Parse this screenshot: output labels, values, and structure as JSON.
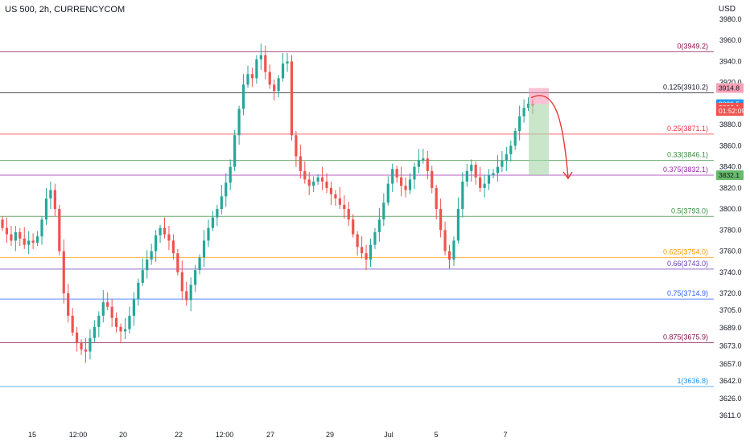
{
  "header": {
    "symbol_title": "US 500, 2h, CURRENCYCOM",
    "currency": "USD"
  },
  "chart_data": {
    "type": "candlestick",
    "title": "US 500, 2h, CURRENCYCOM",
    "y_axis_unit": "USD",
    "y_ticks": [
      "3980.0",
      "3960.0",
      "3940.0",
      "3920.0",
      "3880.0",
      "3860.0",
      "3840.0",
      "3820.0",
      "3800.0",
      "3780.0",
      "3760.0",
      "3740.0",
      "3720.0",
      "3705.0",
      "3689.0",
      "3673.0",
      "3657.0",
      "3642.0",
      "3626.0",
      "3611.0"
    ],
    "x_ticks": [
      "15",
      "12:00",
      "20",
      "22",
      "12:00",
      "27",
      "29",
      "Jul",
      "5",
      "7"
    ],
    "fib_levels": [
      {
        "label": "0(3949.2)",
        "value": 3949.2,
        "color": "#880e4f"
      },
      {
        "label": "0.125(3910.2)",
        "value": 3910.2,
        "color": "#131722"
      },
      {
        "label": "0.25(3871.1)",
        "value": 3871.1,
        "color": "#f23645"
      },
      {
        "label": "0.33(3846.1)",
        "value": 3846.1,
        "color": "#388e3c"
      },
      {
        "label": "0.375(3832.1)",
        "value": 3832.1,
        "color": "#9c27b0"
      },
      {
        "label": "0.5(3793.0)",
        "value": 3793.0,
        "color": "#388e3c"
      },
      {
        "label": "0.625(3754.0)",
        "value": 3754.0,
        "color": "#ff9800"
      },
      {
        "label": "0.66(3743.0)",
        "value": 3743.0,
        "color": "#673ab7"
      },
      {
        "label": "0.75(3714.9)",
        "value": 3714.9,
        "color": "#2962ff"
      },
      {
        "label": "0.875(3675.9)",
        "value": 3675.9,
        "color": "#880e4f"
      },
      {
        "label": "1(3636.8)",
        "value": 3636.8,
        "color": "#2196f3"
      }
    ],
    "price_tags": [
      {
        "text": "3914.8",
        "value": 3914.8,
        "bg": "#f7a1b6",
        "fg": "#131722"
      },
      {
        "text": "3899.5",
        "value": 3899.5,
        "bg": "#2196f3",
        "fg": "#ffffff"
      },
      {
        "text": "3896.1",
        "value": 3896.1,
        "bg": "#ef5350",
        "fg": "#ffffff"
      },
      {
        "text": "01:52:09",
        "value": 3893.0,
        "bg": "#ef5350",
        "fg": "#ffffff"
      },
      {
        "text": "3832.1",
        "value": 3832.1,
        "bg": "#66bb6a",
        "fg": "#131722"
      }
    ],
    "short_position": {
      "entry": 3899.5,
      "stop": 3914.8,
      "target": 3832.1
    },
    "colors": {
      "up": "#26a69a",
      "down": "#ef5350",
      "projection": "#e53935"
    },
    "candles_closes": [
      3782,
      3776,
      3770,
      3778,
      3772,
      3766,
      3770,
      3768,
      3774,
      3790,
      3810,
      3818,
      3800,
      3760,
      3720,
      3700,
      3685,
      3676,
      3670,
      3668,
      3680,
      3690,
      3700,
      3712,
      3708,
      3698,
      3690,
      3686,
      3688,
      3700,
      3715,
      3730,
      3742,
      3752,
      3760,
      3775,
      3782,
      3776,
      3770,
      3758,
      3740,
      3722,
      3714,
      3728,
      3742,
      3754,
      3770,
      3782,
      3792,
      3800,
      3812,
      3825,
      3840,
      3870,
      3895,
      3918,
      3928,
      3924,
      3942,
      3946,
      3930,
      3918,
      3912,
      3924,
      3938,
      3940,
      3870,
      3850,
      3836,
      3828,
      3822,
      3826,
      3830,
      3826,
      3820,
      3814,
      3810,
      3804,
      3800,
      3790,
      3776,
      3764,
      3758,
      3752,
      3766,
      3778,
      3790,
      3806,
      3824,
      3838,
      3830,
      3822,
      3818,
      3828,
      3840,
      3846,
      3848,
      3836,
      3820,
      3800,
      3780,
      3760,
      3752,
      3770,
      3800,
      3826,
      3836,
      3842,
      3830,
      3820,
      3824,
      3832,
      3834,
      3840,
      3846,
      3852,
      3860,
      3874,
      3888,
      3896,
      3900,
      3898
    ]
  }
}
